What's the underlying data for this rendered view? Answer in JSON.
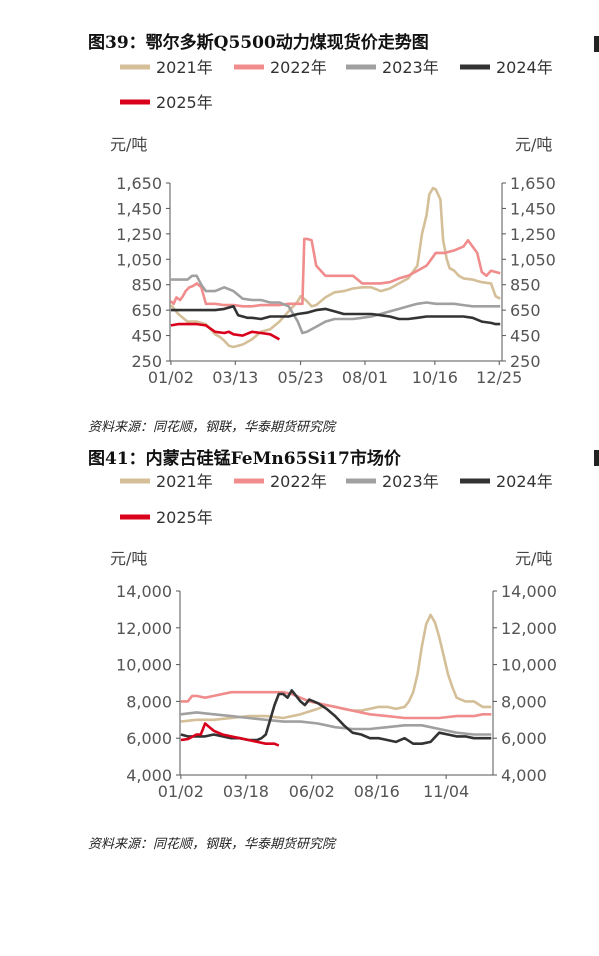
{
  "chart_data": [
    {
      "type": "line",
      "title": "图39：鄂尔多斯Q5500动力煤现货价走势图",
      "y_unit_left": "元/吨",
      "y_unit_right": "元/吨",
      "ylim": [
        250,
        1650
      ],
      "yticks": [
        "250",
        "450",
        "650",
        "850",
        "1,050",
        "1,250",
        "1,450",
        "1,650"
      ],
      "ytick_values": [
        250,
        450,
        650,
        850,
        1050,
        1250,
        1450,
        1650
      ],
      "x_domain": [
        1,
        362
      ],
      "xticks": [
        "01/02",
        "03/13",
        "05/23",
        "08/01",
        "10/16",
        "12/25"
      ],
      "xtick_days": [
        2,
        72,
        143,
        213,
        289,
        359
      ],
      "grid": false,
      "legend_position": "top",
      "source": "资料来源：同花顺，钢联，华泰期货研究院",
      "series": [
        {
          "name": "2021年",
          "color": "#d4bf98",
          "x": [
            2,
            10,
            20,
            30,
            40,
            50,
            55,
            60,
            65,
            70,
            80,
            90,
            100,
            110,
            120,
            125,
            130,
            140,
            143,
            150,
            155,
            160,
            165,
            170,
            180,
            190,
            200,
            210,
            220,
            230,
            240,
            250,
            260,
            270,
            275,
            280,
            283,
            287,
            290,
            295,
            298,
            302,
            305,
            310,
            315,
            320,
            330,
            340,
            350,
            355,
            360
          ],
          "y": [
            690,
            620,
            560,
            560,
            540,
            460,
            440,
            410,
            370,
            360,
            380,
            420,
            480,
            500,
            560,
            600,
            640,
            720,
            760,
            720,
            680,
            690,
            720,
            750,
            790,
            800,
            820,
            830,
            830,
            800,
            820,
            860,
            900,
            1000,
            1250,
            1400,
            1560,
            1610,
            1600,
            1520,
            1200,
            1050,
            980,
            960,
            920,
            900,
            890,
            870,
            860,
            760,
            740
          ]
        },
        {
          "name": "2022年",
          "color": "#f08c8c",
          "x": [
            2,
            5,
            8,
            12,
            15,
            18,
            22,
            26,
            30,
            35,
            40,
            50,
            60,
            70,
            80,
            90,
            100,
            110,
            120,
            130,
            140,
            145,
            147,
            150,
            155,
            160,
            165,
            170,
            180,
            190,
            200,
            210,
            220,
            230,
            240,
            250,
            260,
            270,
            280,
            285,
            290,
            300,
            310,
            320,
            325,
            330,
            335,
            340,
            345,
            350,
            355,
            360
          ],
          "y": [
            720,
            700,
            750,
            730,
            760,
            800,
            830,
            840,
            860,
            830,
            700,
            700,
            690,
            690,
            680,
            680,
            690,
            690,
            690,
            700,
            700,
            700,
            1210,
            1210,
            1200,
            1000,
            960,
            920,
            920,
            920,
            920,
            860,
            860,
            860,
            870,
            900,
            920,
            960,
            1000,
            1050,
            1100,
            1100,
            1120,
            1150,
            1200,
            1150,
            1100,
            950,
            920,
            960,
            950,
            940
          ]
        },
        {
          "name": "2023年",
          "color": "#a0a0a0",
          "x": [
            2,
            10,
            20,
            25,
            30,
            35,
            40,
            50,
            60,
            70,
            80,
            90,
            100,
            110,
            120,
            130,
            135,
            140,
            145,
            150,
            160,
            170,
            180,
            190,
            200,
            210,
            220,
            230,
            240,
            250,
            260,
            270,
            280,
            290,
            300,
            310,
            320,
            330,
            340,
            350,
            360
          ],
          "y": [
            890,
            890,
            890,
            920,
            920,
            850,
            800,
            800,
            830,
            800,
            740,
            730,
            730,
            710,
            710,
            680,
            620,
            560,
            470,
            480,
            520,
            560,
            580,
            580,
            580,
            590,
            600,
            620,
            640,
            660,
            680,
            700,
            710,
            700,
            700,
            700,
            690,
            680,
            680,
            680,
            680
          ]
        },
        {
          "name": "2024年",
          "color": "#333333",
          "x": [
            2,
            10,
            20,
            30,
            40,
            50,
            60,
            70,
            75,
            80,
            85,
            90,
            100,
            110,
            120,
            130,
            140,
            150,
            160,
            170,
            180,
            190,
            200,
            210,
            220,
            230,
            240,
            250,
            260,
            270,
            280,
            290,
            300,
            310,
            320,
            330,
            340,
            350,
            355,
            360
          ],
          "y": [
            650,
            650,
            650,
            650,
            650,
            650,
            660,
            680,
            610,
            600,
            590,
            590,
            580,
            600,
            600,
            600,
            620,
            630,
            650,
            660,
            640,
            620,
            620,
            620,
            620,
            610,
            600,
            580,
            580,
            590,
            600,
            600,
            600,
            600,
            600,
            590,
            560,
            550,
            540,
            540
          ]
        },
        {
          "name": "2025年",
          "color": "#d9001b",
          "x": [
            2,
            10,
            20,
            30,
            40,
            50,
            60,
            65,
            70,
            80,
            90,
            100,
            110,
            115,
            120
          ],
          "y": [
            530,
            540,
            540,
            540,
            530,
            480,
            470,
            480,
            460,
            450,
            480,
            470,
            460,
            440,
            420
          ]
        }
      ]
    },
    {
      "type": "line",
      "title": "图41：内蒙古硅锰FeMn65Si17市场价",
      "y_unit_left": "元/吨",
      "y_unit_right": "元/吨",
      "ylim": [
        4000,
        14000
      ],
      "yticks": [
        "4,000",
        "6,000",
        "8,000",
        "10,000",
        "12,000",
        "14,000"
      ],
      "ytick_values": [
        4000,
        6000,
        8000,
        10000,
        12000,
        14000
      ],
      "x_domain": [
        1,
        362
      ],
      "xticks": [
        "01/02",
        "03/18",
        "06/02",
        "08/16",
        "11/04"
      ],
      "xtick_days": [
        2,
        77,
        153,
        228,
        308
      ],
      "grid": false,
      "legend_position": "top",
      "source": "资料来源：同花顺，钢联，华泰期货研究院",
      "series": [
        {
          "name": "2021年",
          "color": "#d4bf98",
          "x": [
            2,
            20,
            40,
            60,
            80,
            100,
            120,
            140,
            160,
            170,
            180,
            190,
            200,
            210,
            220,
            230,
            240,
            250,
            260,
            265,
            270,
            275,
            280,
            285,
            290,
            295,
            300,
            305,
            310,
            315,
            320,
            330,
            340,
            350,
            360
          ],
          "y": [
            6900,
            7000,
            7000,
            7100,
            7200,
            7200,
            7100,
            7300,
            7600,
            7800,
            7700,
            7600,
            7500,
            7500,
            7600,
            7700,
            7700,
            7600,
            7700,
            8000,
            8500,
            9500,
            11000,
            12200,
            12700,
            12300,
            11500,
            10500,
            9500,
            8800,
            8200,
            8000,
            8000,
            7700,
            7700
          ]
        },
        {
          "name": "2022年",
          "color": "#f08c8c",
          "x": [
            2,
            10,
            15,
            20,
            30,
            40,
            60,
            80,
            100,
            120,
            130,
            140,
            150,
            160,
            170,
            180,
            190,
            200,
            220,
            240,
            260,
            280,
            300,
            320,
            340,
            350,
            360
          ],
          "y": [
            8000,
            8000,
            8300,
            8300,
            8200,
            8300,
            8500,
            8500,
            8500,
            8500,
            8400,
            8200,
            8000,
            7900,
            7800,
            7700,
            7600,
            7500,
            7300,
            7200,
            7100,
            7100,
            7100,
            7200,
            7200,
            7300,
            7300
          ]
        },
        {
          "name": "2023年",
          "color": "#a0a0a0",
          "x": [
            2,
            20,
            40,
            60,
            80,
            100,
            120,
            140,
            160,
            180,
            200,
            220,
            240,
            260,
            280,
            300,
            320,
            340,
            360
          ],
          "y": [
            7300,
            7400,
            7300,
            7200,
            7100,
            7000,
            6900,
            6900,
            6800,
            6600,
            6500,
            6500,
            6600,
            6700,
            6700,
            6500,
            6300,
            6200,
            6200
          ]
        },
        {
          "name": "2024年",
          "color": "#333333",
          "x": [
            2,
            10,
            20,
            30,
            40,
            50,
            60,
            70,
            80,
            90,
            95,
            100,
            105,
            110,
            115,
            120,
            125,
            130,
            135,
            140,
            145,
            150,
            160,
            170,
            180,
            190,
            200,
            210,
            220,
            230,
            240,
            250,
            260,
            270,
            280,
            290,
            300,
            310,
            320,
            330,
            340,
            350,
            360
          ],
          "y": [
            6200,
            6100,
            6100,
            6100,
            6200,
            6100,
            6000,
            6000,
            5900,
            5900,
            6000,
            6200,
            7000,
            7800,
            8400,
            8400,
            8200,
            8600,
            8300,
            8000,
            7800,
            8100,
            7900,
            7600,
            7200,
            6700,
            6300,
            6200,
            6000,
            6000,
            5900,
            5800,
            6000,
            5700,
            5700,
            5800,
            6300,
            6200,
            6100,
            6100,
            6000,
            6000,
            6000
          ]
        },
        {
          "name": "2025年",
          "color": "#d9001b",
          "x": [
            2,
            10,
            20,
            25,
            30,
            35,
            40,
            50,
            60,
            70,
            80,
            90,
            100,
            110,
            115
          ],
          "y": [
            5900,
            5950,
            6200,
            6200,
            6800,
            6600,
            6400,
            6200,
            6100,
            6000,
            5900,
            5800,
            5700,
            5700,
            5600
          ]
        }
      ]
    }
  ]
}
